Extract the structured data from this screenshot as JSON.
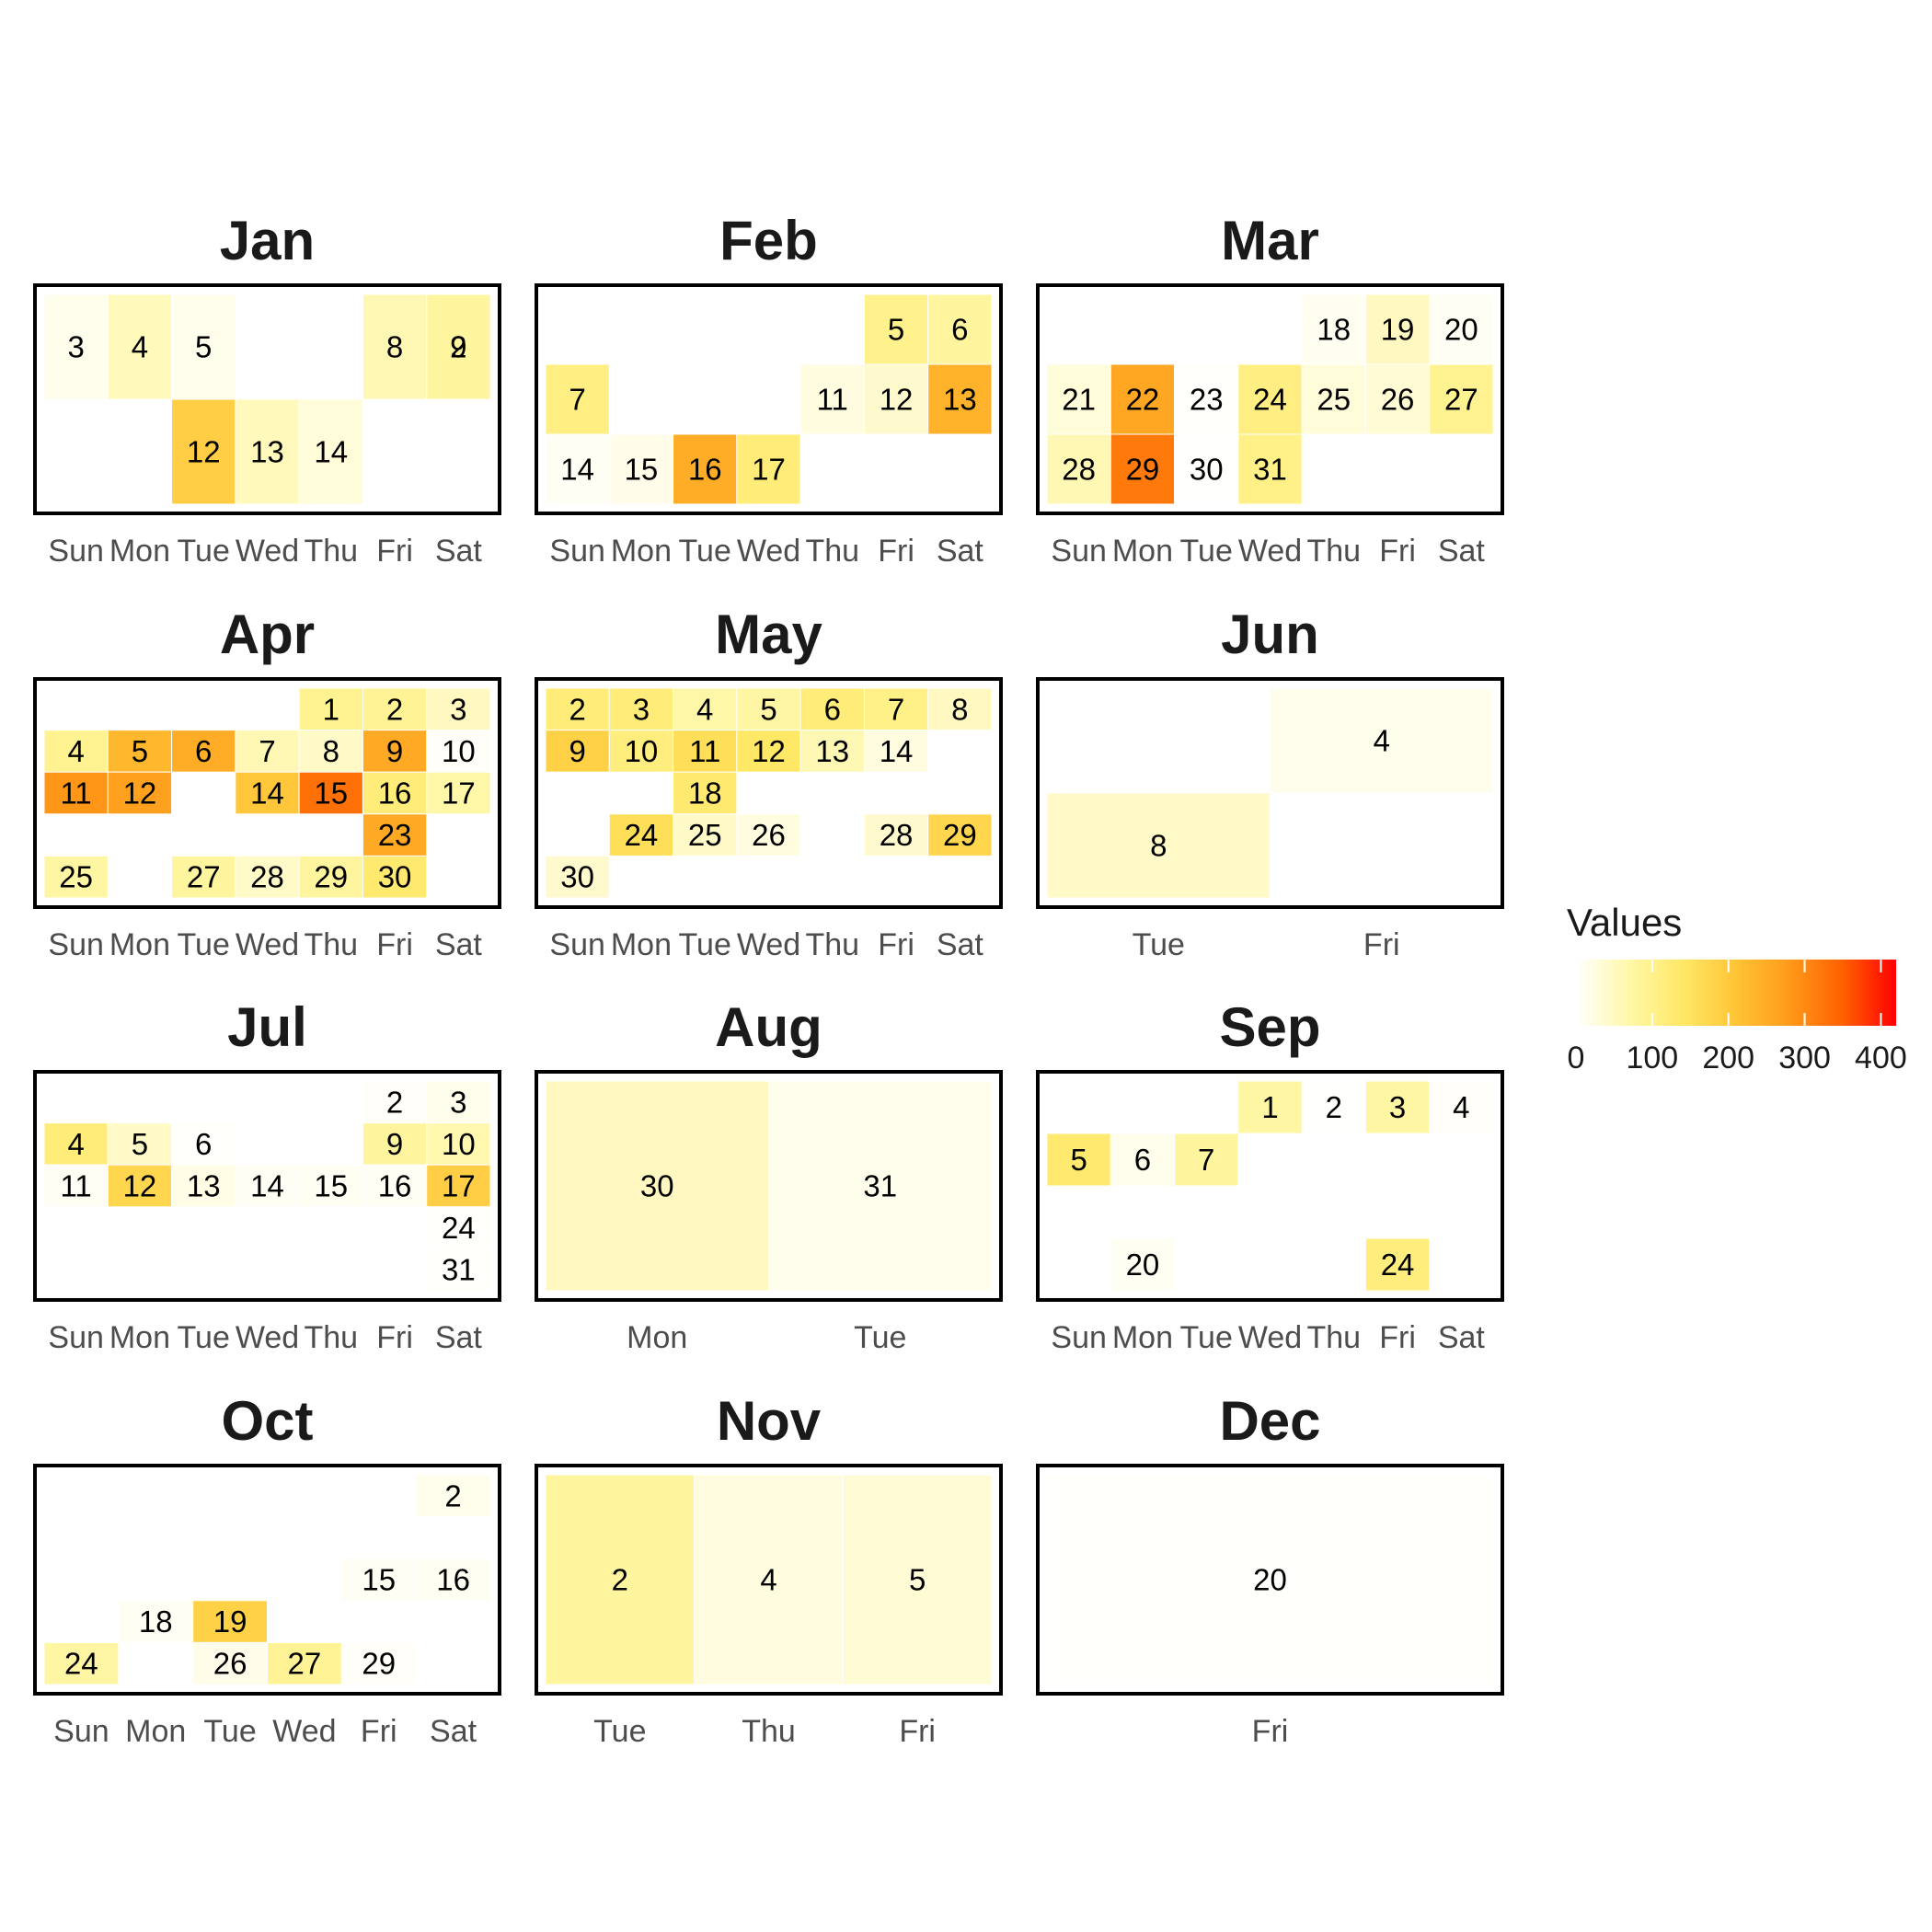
{
  "chart_data": {
    "type": "heatmap",
    "legend": {
      "title": "Values",
      "ticks": [
        0,
        100,
        200,
        300,
        400
      ],
      "range": [
        0,
        420
      ],
      "colors": [
        "#FFFFFF",
        "#FFF7A8",
        "#FFE866",
        "#FFC436",
        "#FF9A1A",
        "#FF6000",
        "#FF0000"
      ],
      "placement": "right"
    },
    "months": [
      {
        "name": "Jan",
        "weekdays": [
          "Sun",
          "Mon",
          "Tue",
          "Wed",
          "Thu",
          "Fri",
          "Sat"
        ],
        "weeks": 2,
        "cells": [
          {
            "day": "3",
            "wd": 0,
            "wk": 0,
            "v": 15
          },
          {
            "day": "4",
            "wd": 1,
            "wk": 0,
            "v": 55
          },
          {
            "day": "5",
            "wd": 2,
            "wk": 0,
            "v": 15
          },
          {
            "day": "8",
            "wd": 5,
            "wk": 0,
            "v": 60
          },
          {
            "day": "9",
            "wd": 6,
            "wk": 0,
            "v": 80
          },
          {
            "day": "2",
            "wd": 6,
            "wk": 0,
            "v": 80
          },
          {
            "day": "12",
            "wd": 2,
            "wk": 1,
            "v": 190
          },
          {
            "day": "13",
            "wd": 3,
            "wk": 1,
            "v": 55
          },
          {
            "day": "14",
            "wd": 4,
            "wk": 1,
            "v": 30
          }
        ]
      },
      {
        "name": "Feb",
        "weekdays": [
          "Sun",
          "Mon",
          "Tue",
          "Wed",
          "Thu",
          "Fri",
          "Sat"
        ],
        "weeks": 3,
        "cells": [
          {
            "day": "5",
            "wd": 5,
            "wk": 0,
            "v": 100
          },
          {
            "day": "6",
            "wd": 6,
            "wk": 0,
            "v": 80
          },
          {
            "day": "7",
            "wd": 0,
            "wk": 1,
            "v": 110
          },
          {
            "day": "11",
            "wd": 4,
            "wk": 1,
            "v": 25
          },
          {
            "day": "12",
            "wd": 5,
            "wk": 1,
            "v": 40
          },
          {
            "day": "13",
            "wd": 6,
            "wk": 1,
            "v": 240
          },
          {
            "day": "14",
            "wd": 0,
            "wk": 2,
            "v": 8
          },
          {
            "day": "15",
            "wd": 1,
            "wk": 2,
            "v": 18
          },
          {
            "day": "16",
            "wd": 2,
            "wk": 2,
            "v": 250
          },
          {
            "day": "17",
            "wd": 3,
            "wk": 2,
            "v": 120
          }
        ]
      },
      {
        "name": "Mar",
        "weekdays": [
          "Sun",
          "Mon",
          "Tue",
          "Wed",
          "Thu",
          "Fri",
          "Sat"
        ],
        "weeks": 3,
        "cells": [
          {
            "day": "18",
            "wd": 4,
            "wk": 0,
            "v": 12
          },
          {
            "day": "19",
            "wd": 5,
            "wk": 0,
            "v": 50
          },
          {
            "day": "20",
            "wd": 6,
            "wk": 0,
            "v": 8
          },
          {
            "day": "21",
            "wd": 0,
            "wk": 1,
            "v": 30
          },
          {
            "day": "22",
            "wd": 1,
            "wk": 1,
            "v": 260
          },
          {
            "day": "23",
            "wd": 2,
            "wk": 1,
            "v": 3
          },
          {
            "day": "24",
            "wd": 3,
            "wk": 1,
            "v": 110
          },
          {
            "day": "25",
            "wd": 4,
            "wk": 1,
            "v": 30
          },
          {
            "day": "26",
            "wd": 5,
            "wk": 1,
            "v": 35
          },
          {
            "day": "27",
            "wd": 6,
            "wk": 1,
            "v": 95
          },
          {
            "day": "28",
            "wd": 0,
            "wk": 2,
            "v": 60
          },
          {
            "day": "29",
            "wd": 1,
            "wk": 2,
            "v": 320
          },
          {
            "day": "30",
            "wd": 2,
            "wk": 2,
            "v": 2
          },
          {
            "day": "31",
            "wd": 3,
            "wk": 2,
            "v": 105
          }
        ]
      },
      {
        "name": "Apr",
        "weekdays": [
          "Sun",
          "Mon",
          "Tue",
          "Wed",
          "Thu",
          "Fri",
          "Sat"
        ],
        "weeks": 5,
        "cells": [
          {
            "day": "1",
            "wd": 4,
            "wk": 0,
            "v": 95
          },
          {
            "day": "2",
            "wd": 5,
            "wk": 0,
            "v": 90
          },
          {
            "day": "3",
            "wd": 6,
            "wk": 0,
            "v": 50
          },
          {
            "day": "4",
            "wd": 0,
            "wk": 1,
            "v": 95
          },
          {
            "day": "5",
            "wd": 1,
            "wk": 1,
            "v": 230
          },
          {
            "day": "6",
            "wd": 2,
            "wk": 1,
            "v": 250
          },
          {
            "day": "7",
            "wd": 3,
            "wk": 1,
            "v": 60
          },
          {
            "day": "8",
            "wd": 4,
            "wk": 1,
            "v": 45
          },
          {
            "day": "9",
            "wd": 5,
            "wk": 1,
            "v": 255
          },
          {
            "day": "10",
            "wd": 6,
            "wk": 1,
            "v": 5
          },
          {
            "day": "11",
            "wd": 0,
            "wk": 2,
            "v": 285
          },
          {
            "day": "12",
            "wd": 1,
            "wk": 2,
            "v": 270
          },
          {
            "day": "14",
            "wd": 3,
            "wk": 2,
            "v": 205
          },
          {
            "day": "15",
            "wd": 4,
            "wk": 2,
            "v": 330
          },
          {
            "day": "16",
            "wd": 5,
            "wk": 2,
            "v": 120
          },
          {
            "day": "17",
            "wd": 6,
            "wk": 2,
            "v": 70
          },
          {
            "day": "23",
            "wd": 5,
            "wk": 3,
            "v": 255
          },
          {
            "day": "25",
            "wd": 0,
            "wk": 4,
            "v": 75
          },
          {
            "day": "27",
            "wd": 2,
            "wk": 4,
            "v": 80
          },
          {
            "day": "28",
            "wd": 3,
            "wk": 4,
            "v": 45
          },
          {
            "day": "29",
            "wd": 4,
            "wk": 4,
            "v": 80
          },
          {
            "day": "30",
            "wd": 5,
            "wk": 4,
            "v": 130
          }
        ]
      },
      {
        "name": "May",
        "weekdays": [
          "Sun",
          "Mon",
          "Tue",
          "Wed",
          "Thu",
          "Fri",
          "Sat"
        ],
        "weeks": 5,
        "cells": [
          {
            "day": "2",
            "wd": 0,
            "wk": 0,
            "v": 120
          },
          {
            "day": "3",
            "wd": 1,
            "wk": 0,
            "v": 120
          },
          {
            "day": "4",
            "wd": 2,
            "wk": 0,
            "v": 70
          },
          {
            "day": "5",
            "wd": 3,
            "wk": 0,
            "v": 75
          },
          {
            "day": "6",
            "wd": 4,
            "wk": 0,
            "v": 120
          },
          {
            "day": "7",
            "wd": 5,
            "wk": 0,
            "v": 105
          },
          {
            "day": "8",
            "wd": 6,
            "wk": 0,
            "v": 50
          },
          {
            "day": "9",
            "wd": 0,
            "wk": 1,
            "v": 185
          },
          {
            "day": "10",
            "wd": 1,
            "wk": 1,
            "v": 115
          },
          {
            "day": "11",
            "wd": 2,
            "wk": 1,
            "v": 160
          },
          {
            "day": "12",
            "wd": 3,
            "wk": 1,
            "v": 140
          },
          {
            "day": "13",
            "wd": 4,
            "wk": 1,
            "v": 60
          },
          {
            "day": "14",
            "wd": 5,
            "wk": 1,
            "v": 25
          },
          {
            "day": "18",
            "wd": 2,
            "wk": 2,
            "v": 130
          },
          {
            "day": "24",
            "wd": 1,
            "wk": 3,
            "v": 160
          },
          {
            "day": "25",
            "wd": 2,
            "wk": 3,
            "v": 45
          },
          {
            "day": "26",
            "wd": 3,
            "wk": 3,
            "v": 25
          },
          {
            "day": "28",
            "wd": 5,
            "wk": 3,
            "v": 40
          },
          {
            "day": "29",
            "wd": 6,
            "wk": 3,
            "v": 175
          },
          {
            "day": "30",
            "wd": 0,
            "wk": 4,
            "v": 40
          }
        ]
      },
      {
        "name": "Jun",
        "weekdays": [
          "Tue",
          "Fri"
        ],
        "weeks": 2,
        "cells": [
          {
            "day": "4",
            "wd": 1,
            "wk": 0,
            "v": 15
          },
          {
            "day": "8",
            "wd": 0,
            "wk": 1,
            "v": 45
          }
        ]
      },
      {
        "name": "Jul",
        "weekdays": [
          "Sun",
          "Mon",
          "Tue",
          "Wed",
          "Thu",
          "Fri",
          "Sat"
        ],
        "weeks": 5,
        "cells": [
          {
            "day": "2",
            "wd": 5,
            "wk": 0,
            "v": 6
          },
          {
            "day": "3",
            "wd": 6,
            "wk": 0,
            "v": 15
          },
          {
            "day": "4",
            "wd": 0,
            "wk": 1,
            "v": 120
          },
          {
            "day": "5",
            "wd": 1,
            "wk": 1,
            "v": 45
          },
          {
            "day": "6",
            "wd": 2,
            "wk": 1,
            "v": 3
          },
          {
            "day": "9",
            "wd": 5,
            "wk": 1,
            "v": 80
          },
          {
            "day": "10",
            "wd": 6,
            "wk": 1,
            "v": 65
          },
          {
            "day": "11",
            "wd": 0,
            "wk": 2,
            "v": 8
          },
          {
            "day": "12",
            "wd": 1,
            "wk": 2,
            "v": 175
          },
          {
            "day": "13",
            "wd": 2,
            "wk": 2,
            "v": 20
          },
          {
            "day": "14",
            "wd": 3,
            "wk": 2,
            "v": 8
          },
          {
            "day": "15",
            "wd": 4,
            "wk": 2,
            "v": 10
          },
          {
            "day": "16",
            "wd": 5,
            "wk": 2,
            "v": 8
          },
          {
            "day": "17",
            "wd": 6,
            "wk": 2,
            "v": 190
          },
          {
            "day": "24",
            "wd": 6,
            "wk": 3,
            "v": 3
          },
          {
            "day": "31",
            "wd": 6,
            "wk": 4,
            "v": 3
          }
        ]
      },
      {
        "name": "Aug",
        "weekdays": [
          "Mon",
          "Tue"
        ],
        "weeks": 1,
        "cells": [
          {
            "day": "30",
            "wd": 0,
            "wk": 0,
            "v": 50
          },
          {
            "day": "31",
            "wd": 1,
            "wk": 0,
            "v": 15
          }
        ]
      },
      {
        "name": "Sep",
        "weekdays": [
          "Sun",
          "Mon",
          "Tue",
          "Wed",
          "Thu",
          "Fri",
          "Sat"
        ],
        "weeks": 4,
        "cells": [
          {
            "day": "1",
            "wd": 3,
            "wk": 0,
            "v": 75
          },
          {
            "day": "2",
            "wd": 4,
            "wk": 0,
            "v": 2
          },
          {
            "day": "3",
            "wd": 5,
            "wk": 0,
            "v": 75
          },
          {
            "day": "4",
            "wd": 6,
            "wk": 0,
            "v": 5
          },
          {
            "day": "5",
            "wd": 0,
            "wk": 1,
            "v": 130
          },
          {
            "day": "6",
            "wd": 1,
            "wk": 1,
            "v": 15
          },
          {
            "day": "7",
            "wd": 2,
            "wk": 1,
            "v": 80
          },
          {
            "day": "20",
            "wd": 1,
            "wk": 3,
            "v": 10
          },
          {
            "day": "24",
            "wd": 5,
            "wk": 3,
            "v": 115
          }
        ]
      },
      {
        "name": "Oct",
        "weekdays": [
          "Sun",
          "Mon",
          "Tue",
          "Wed",
          "Fri",
          "Sat"
        ],
        "weeks": 5,
        "cells": [
          {
            "day": "2",
            "wd": 5,
            "wk": 0,
            "v": 15
          },
          {
            "day": "15",
            "wd": 4,
            "wk": 2,
            "v": 8
          },
          {
            "day": "16",
            "wd": 5,
            "wk": 2,
            "v": 10
          },
          {
            "day": "18",
            "wd": 1,
            "wk": 3,
            "v": 8
          },
          {
            "day": "19",
            "wd": 2,
            "wk": 3,
            "v": 185
          },
          {
            "day": "24",
            "wd": 0,
            "wk": 4,
            "v": 75
          },
          {
            "day": "26",
            "wd": 2,
            "wk": 4,
            "v": 18
          },
          {
            "day": "27",
            "wd": 3,
            "wk": 4,
            "v": 90
          },
          {
            "day": "29",
            "wd": 4,
            "wk": 4,
            "v": 5
          }
        ]
      },
      {
        "name": "Nov",
        "weekdays": [
          "Tue",
          "Thu",
          "Fri"
        ],
        "weeks": 1,
        "cells": [
          {
            "day": "2",
            "wd": 0,
            "wk": 0,
            "v": 80
          },
          {
            "day": "4",
            "wd": 1,
            "wk": 0,
            "v": 25
          },
          {
            "day": "5",
            "wd": 2,
            "wk": 0,
            "v": 35
          }
        ]
      },
      {
        "name": "Dec",
        "weekdays": [
          "Fri"
        ],
        "weeks": 1,
        "cells": [
          {
            "day": "20",
            "wd": 0,
            "wk": 0,
            "v": 3
          }
        ]
      }
    ]
  }
}
